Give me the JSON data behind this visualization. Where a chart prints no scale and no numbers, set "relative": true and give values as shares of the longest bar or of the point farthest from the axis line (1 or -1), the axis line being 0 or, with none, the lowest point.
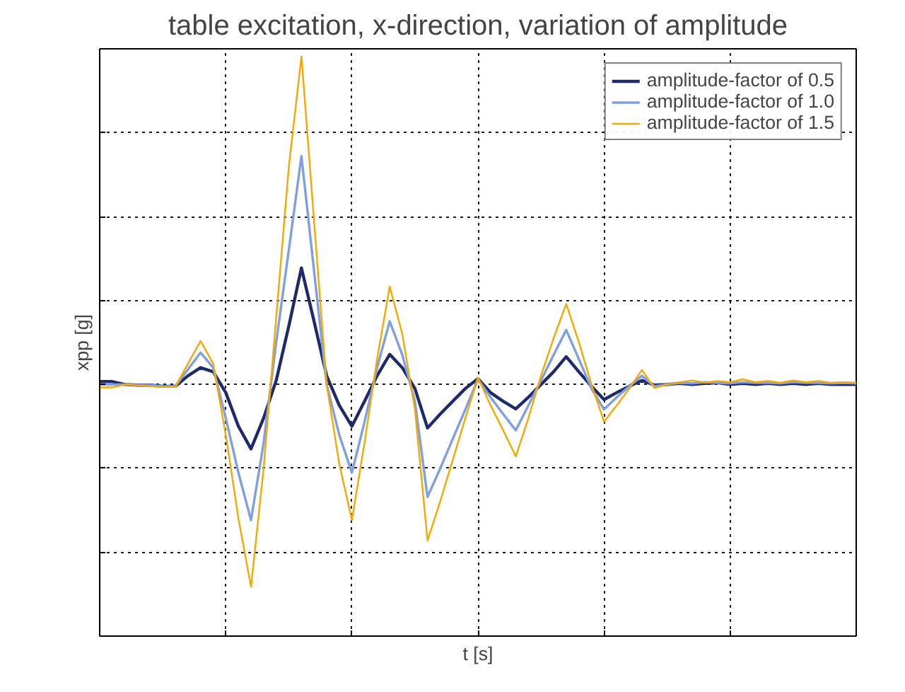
{
  "chart_data": {
    "type": "line",
    "relative": true,
    "title": "table excitation, x-direction, variation of amplitude",
    "xlabel": "t [s]",
    "ylabel": "xpp [g]",
    "grid": true,
    "legend": "top right",
    "categories": [
      null,
      null,
      null,
      null,
      null,
      null,
      null,
      null,
      null,
      null,
      null,
      null,
      null,
      null,
      null,
      null,
      null,
      null,
      null,
      null,
      null,
      null,
      null,
      null,
      null,
      null,
      null,
      null,
      null,
      null,
      null,
      null,
      null,
      null,
      null,
      null,
      null,
      null,
      null,
      null,
      null,
      null,
      null,
      null,
      null,
      null,
      null,
      null,
      null,
      null,
      null,
      null,
      null,
      null,
      null,
      null,
      null,
      null,
      null,
      null,
      null
    ],
    "series": [
      {
        "name": "amplitude-factor of 0.5",
        "color": "#1f2a6b",
        "values": [
          0.439,
          0.439,
          0.434,
          0.433,
          0.433,
          0.431,
          0.431,
          0.449,
          0.463,
          0.456,
          0.42,
          0.362,
          0.323,
          0.376,
          0.441,
          0.535,
          0.635,
          0.543,
          0.449,
          0.398,
          0.362,
          0.405,
          0.449,
          0.486,
          0.463,
          0.427,
          0.359,
          0.383,
          0.405,
          0.427,
          0.444,
          0.42,
          0.405,
          0.392,
          0.412,
          0.434,
          0.456,
          0.482,
          0.456,
          0.431,
          0.408,
          0.42,
          0.431,
          0.441,
          0.433,
          0.434,
          0.436,
          0.434,
          0.436,
          0.437,
          0.434,
          0.436,
          0.434,
          0.436,
          0.434,
          0.436,
          0.434,
          0.436,
          0.434,
          0.434,
          0.434
        ]
      },
      {
        "name": "amplitude-factor of 1.0",
        "color": "#7f9fe0",
        "values": [
          0.434,
          0.434,
          0.434,
          0.433,
          0.433,
          0.431,
          0.431,
          0.46,
          0.489,
          0.463,
          0.376,
          0.282,
          0.2,
          0.333,
          0.507,
          0.666,
          0.828,
          0.63,
          0.434,
          0.347,
          0.282,
          0.369,
          0.463,
          0.543,
          0.485,
          0.405,
          0.24,
          0.289,
          0.34,
          0.391,
          0.443,
          0.412,
          0.383,
          0.355,
          0.398,
          0.441,
          0.485,
          0.528,
          0.478,
          0.427,
          0.391,
          0.412,
          0.431,
          0.449,
          0.431,
          0.434,
          0.437,
          0.436,
          0.438,
          0.437,
          0.436,
          0.438,
          0.437,
          0.437,
          0.436,
          0.438,
          0.437,
          0.437,
          0.436,
          0.437,
          0.436
        ]
      },
      {
        "name": "amplitude-factor of 1.5",
        "color": "#f5a800",
        "values": [
          0.429,
          0.429,
          0.434,
          0.433,
          0.431,
          0.43,
          0.43,
          0.47,
          0.509,
          0.47,
          0.347,
          0.203,
          0.085,
          0.289,
          0.55,
          0.81,
          1,
          0.716,
          0.434,
          0.297,
          0.2,
          0.333,
          0.478,
          0.603,
          0.521,
          0.391,
          0.165,
          0.232,
          0.304,
          0.376,
          0.446,
          0.398,
          0.355,
          0.31,
          0.376,
          0.449,
          0.514,
          0.573,
          0.507,
          0.434,
          0.37,
          0.398,
          0.427,
          0.459,
          0.428,
          0.434,
          0.438,
          0.441,
          0.437,
          0.44,
          0.438,
          0.443,
          0.438,
          0.44,
          0.437,
          0.441,
          0.438,
          0.44,
          0.437,
          0.438,
          0.437
        ]
      }
    ]
  }
}
